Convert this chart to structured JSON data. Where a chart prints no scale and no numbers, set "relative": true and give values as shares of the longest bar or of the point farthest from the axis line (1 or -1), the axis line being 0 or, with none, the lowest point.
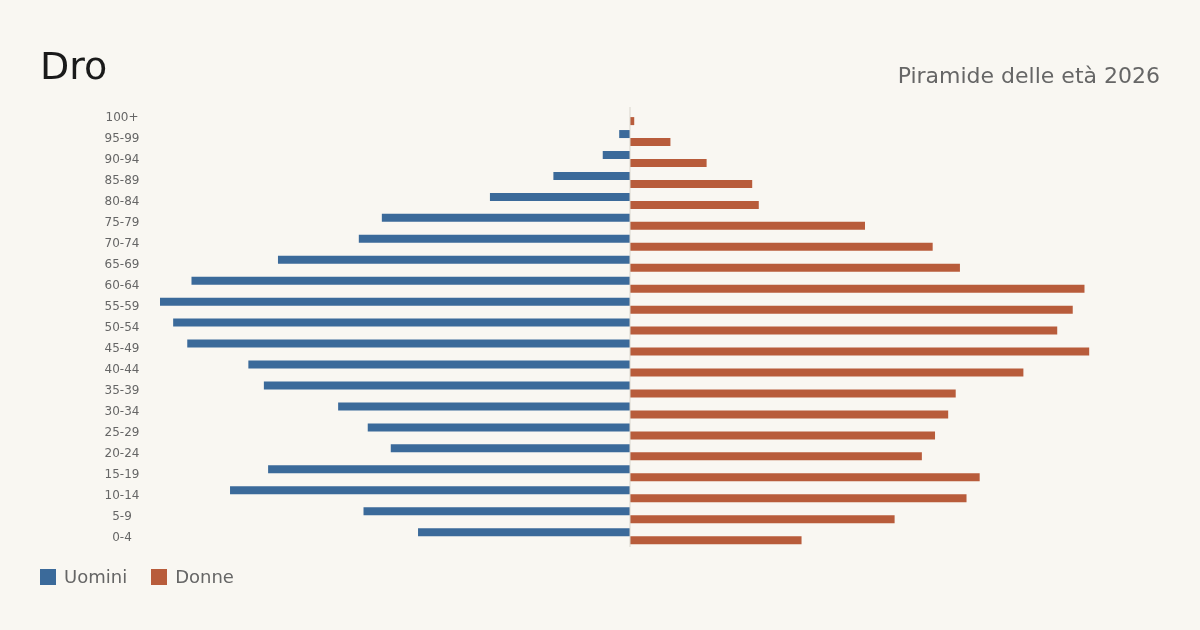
{
  "chart_data": {
    "type": "bar",
    "orientation": "horizontal",
    "relative": true,
    "title": "Dro",
    "subtitle": "Piramide delle età 2026",
    "legend": "bottom left",
    "categories": [
      "100+",
      "95-99",
      "90-94",
      "85-89",
      "80-84",
      "75-79",
      "70-74",
      "65-69",
      "60-64",
      "55-59",
      "50-54",
      "45-49",
      "40-44",
      "35-39",
      "30-34",
      "25-29",
      "20-24",
      "15-19",
      "10-14",
      "5-9",
      "0-4"
    ],
    "series": [
      {
        "name": "Uomini",
        "color": "#3b6a9a",
        "values": [
          0,
          -0.023,
          -0.058,
          -0.163,
          -0.298,
          -0.528,
          -0.577,
          -0.749,
          -0.933,
          -1,
          -0.972,
          -0.942,
          -0.812,
          -0.779,
          -0.621,
          -0.558,
          -0.509,
          -0.77,
          -0.851,
          -0.567,
          -0.451
        ]
      },
      {
        "name": "Donne",
        "color": "#b85c3b",
        "values": [
          0.009,
          0.086,
          0.163,
          0.26,
          0.274,
          0.5,
          0.644,
          0.702,
          0.967,
          0.942,
          0.909,
          0.977,
          0.837,
          0.693,
          0.677,
          0.649,
          0.621,
          0.744,
          0.716,
          0.563,
          0.365
        ]
      }
    ]
  }
}
